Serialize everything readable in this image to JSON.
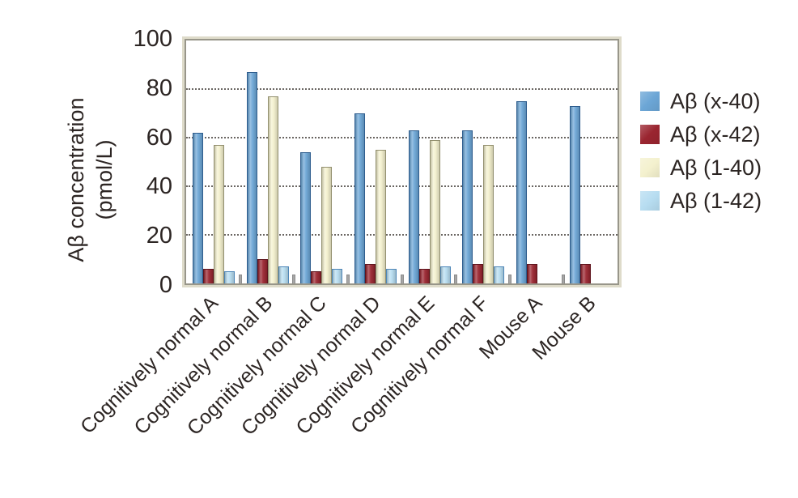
{
  "figure": {
    "background": "#ffffff",
    "text_color": "#2c2523"
  },
  "chart_data": {
    "type": "bar",
    "title": "",
    "ylabel_line1": "Aβ concentration",
    "ylabel_line2": "(pmol/L)",
    "xlabel": "",
    "ylim": [
      0,
      100
    ],
    "yticks": [
      100,
      80,
      60,
      40,
      20,
      0
    ],
    "grid": "horizontal dotted at 20, 40, 60, 80",
    "legend_position": "right of plot",
    "categories": [
      "Cognitively normal A",
      "Cognitively normal B",
      "Cognitively normal C",
      "Cognitively normal D",
      "Cognitively normal E",
      "Cognitively normal F",
      "Mouse A",
      "Mouse B"
    ],
    "series": [
      {
        "name": "Aβ (x-40)",
        "color": "#6CA6D6",
        "border": "#2E5D8E",
        "values": [
          62,
          87,
          54,
          70,
          63,
          63,
          75,
          73
        ]
      },
      {
        "name": "Aβ (x-42)",
        "color": "#9A2530",
        "border": "#5E141D",
        "values": [
          6,
          10,
          5,
          8,
          6,
          8,
          8,
          8
        ]
      },
      {
        "name": "Aβ (1-40)",
        "color": "#F4F1CE",
        "border": "#93906F",
        "values": [
          57,
          77,
          48,
          55,
          59,
          57,
          0,
          0
        ]
      },
      {
        "name": "Aβ (1-42)",
        "color": "#B7DDF1",
        "border": "#4D86B8",
        "values": [
          5,
          7,
          6,
          6,
          7,
          7,
          0,
          0
        ]
      }
    ]
  }
}
